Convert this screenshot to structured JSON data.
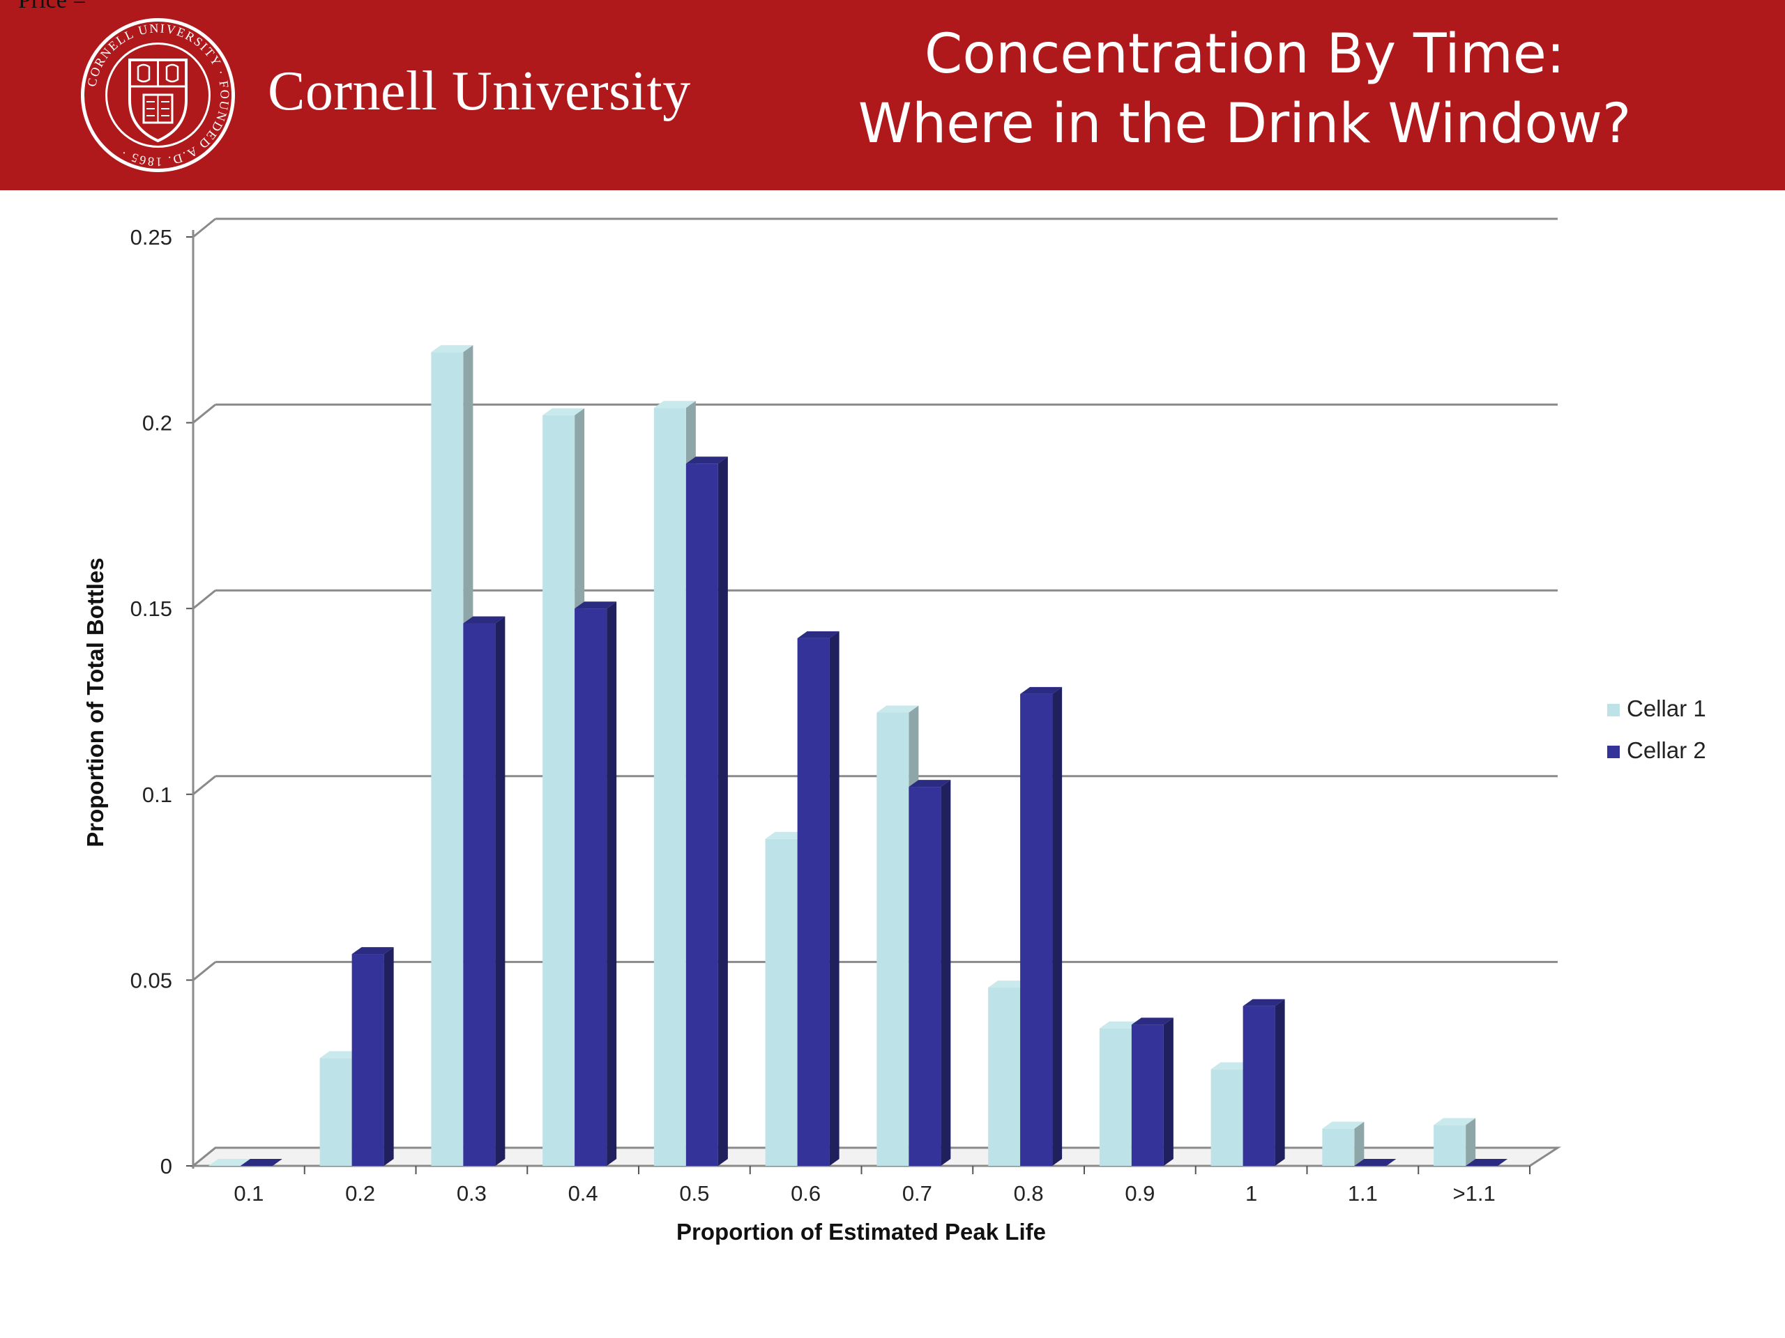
{
  "header": {
    "stray_text": "Price =",
    "university_name": "Cornell University",
    "title_line1": "Concentration By Time:",
    "title_line2": "Where in the Drink Window?",
    "seal_text": "CORNELL UNIVERSITY · FOUNDED A.D. 1865",
    "background_color": "#b0191b"
  },
  "chart_data": {
    "type": "bar",
    "categories": [
      "0.1",
      "0.2",
      "0.3",
      "0.4",
      "0.5",
      "0.6",
      "0.7",
      "0.8",
      "0.9",
      "1",
      "1.1",
      ">1.1"
    ],
    "series": [
      {
        "name": "Cellar 1",
        "color": "#bde3e8",
        "values": [
          0,
          0.029,
          0.219,
          0.202,
          0.204,
          0.088,
          0.122,
          0.048,
          0.037,
          0.026,
          0.01,
          0.011
        ]
      },
      {
        "name": "Cellar 2",
        "color": "#333399",
        "values": [
          0,
          0.057,
          0.146,
          0.15,
          0.189,
          0.142,
          0.102,
          0.127,
          0.038,
          0.043,
          0,
          0
        ]
      }
    ],
    "xlabel": "Proportion of Estimated Peak Life",
    "ylabel": "Proportion of Total Bottles",
    "ylim": [
      0,
      0.25
    ],
    "yticks": [
      "0",
      "0.05",
      "0.1",
      "0.15",
      "0.2",
      "0.25"
    ],
    "grid": true,
    "legend_position": "right",
    "style": "3d-clustered-column"
  }
}
